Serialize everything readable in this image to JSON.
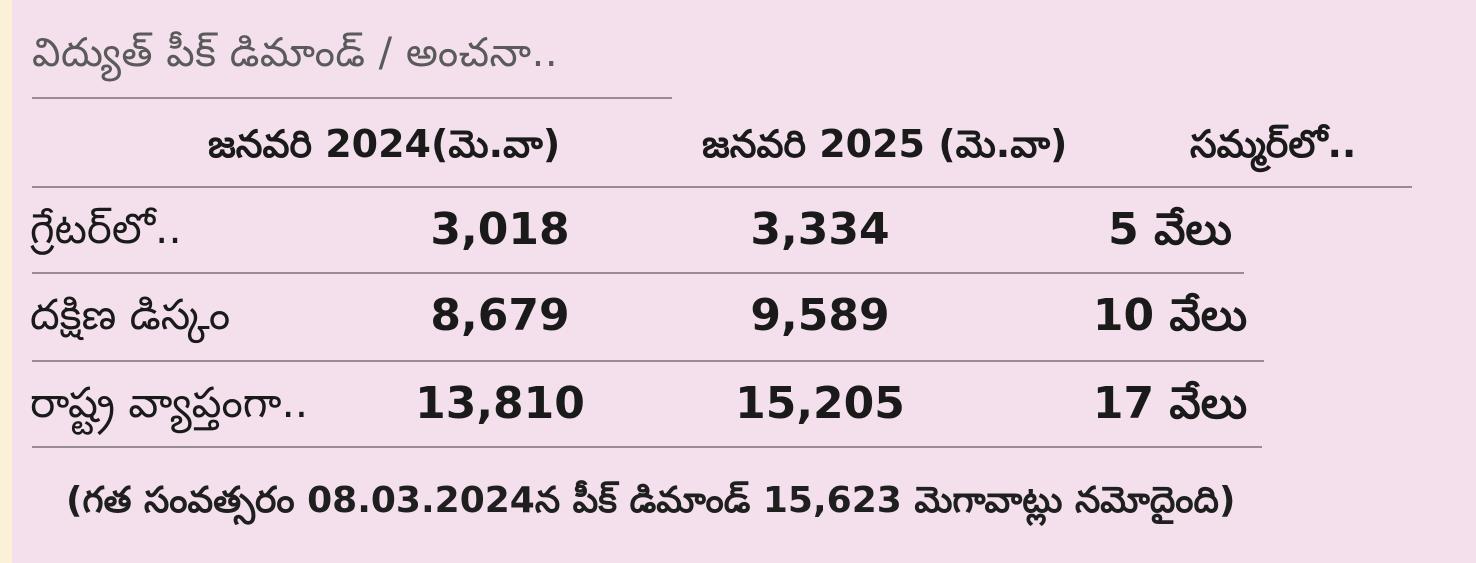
{
  "title": "విద్యుత్ పీక్ డిమాండ్ / అంచనా..",
  "table": {
    "headers": [
      "జనవరి 2024(మె.వా)",
      "జనవరి 2025 (మె.వా)",
      "సమ్మర్‌లో.."
    ],
    "rows": [
      {
        "label": "గ్రేటర్‌లో..",
        "jan2024": "3,018",
        "jan2025": "3,334",
        "summer": "5 వేలు"
      },
      {
        "label": "దక్షిణ డిస్కం",
        "jan2024": "8,679",
        "jan2025": "9,589",
        "summer": "10 వేలు"
      },
      {
        "label": "రాష్ట్ర వ్యాప్తంగా..",
        "jan2024": "13,810",
        "jan2025": "15,205",
        "summer": "17 వేలు"
      }
    ]
  },
  "footnote": "(గత సంవత్సరం 08.03.2024న పీక్ డిమాండ్ 15,623 మెగావాట్లు నమోదైంది)"
}
